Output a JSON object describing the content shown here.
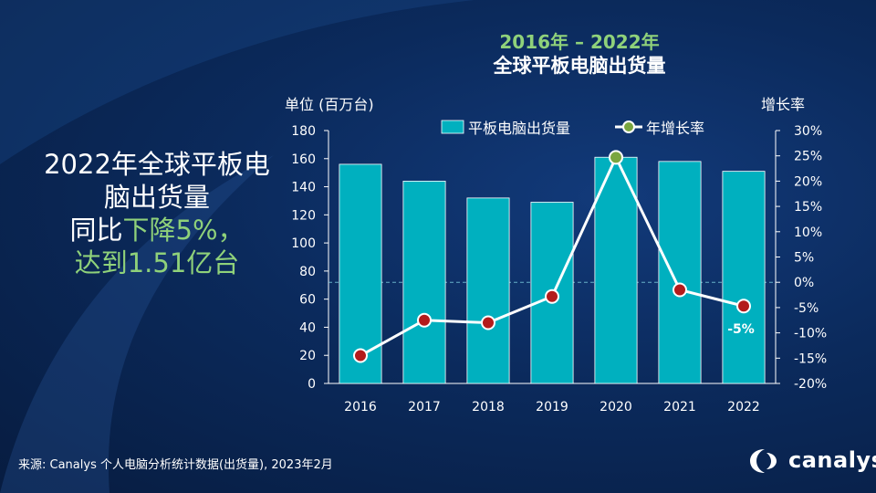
{
  "header": {
    "range": "2016年 – 2022年",
    "title": "全球平板电脑出货量"
  },
  "headline": {
    "line1": "2022年全球平板电",
    "line2": "脑出货量",
    "line3_prefix": "同比",
    "line3_highlight": "下降5%，",
    "line4": "达到1.51亿台"
  },
  "source": "来源: Canalys 个人电脑分析统计数据(出货量), 2023年2月",
  "logo": {
    "text": "canalys",
    "icon": "canalys-swirl-icon"
  },
  "colors": {
    "bar": "#00b0bf",
    "line": "#ffffff",
    "marker": "#b31b1b",
    "marker_highlight": "#7aa640",
    "accent_green": "#8fd17a"
  },
  "chart_data": {
    "type": "bar",
    "categories": [
      "2016",
      "2017",
      "2018",
      "2019",
      "2020",
      "2021",
      "2022"
    ],
    "series": [
      {
        "name": "平板电脑出货量",
        "type": "bar",
        "axis": "left",
        "values": [
          156,
          144,
          132,
          129,
          161,
          158,
          151
        ]
      },
      {
        "name": "年增长率",
        "type": "line",
        "axis": "right",
        "values": [
          -14.5,
          -7.5,
          -8,
          -2.8,
          24.7,
          -1.5,
          -4.7
        ]
      }
    ],
    "ylabel": "单位 (百万台)",
    "ylabel_right": "增长率",
    "ylim": [
      0,
      180
    ],
    "yticks": [
      0,
      20,
      40,
      60,
      80,
      100,
      120,
      140,
      160,
      180
    ],
    "ylim_right": [
      -20,
      30
    ],
    "yticks_right": [
      "-20%",
      "-15%",
      "-10%",
      "-5%",
      "0%",
      "5%",
      "10%",
      "15%",
      "20%",
      "25%",
      "30%"
    ],
    "annotations": [
      {
        "category": "2022",
        "text": "-5%"
      }
    ],
    "legend": "top",
    "grid": false
  }
}
